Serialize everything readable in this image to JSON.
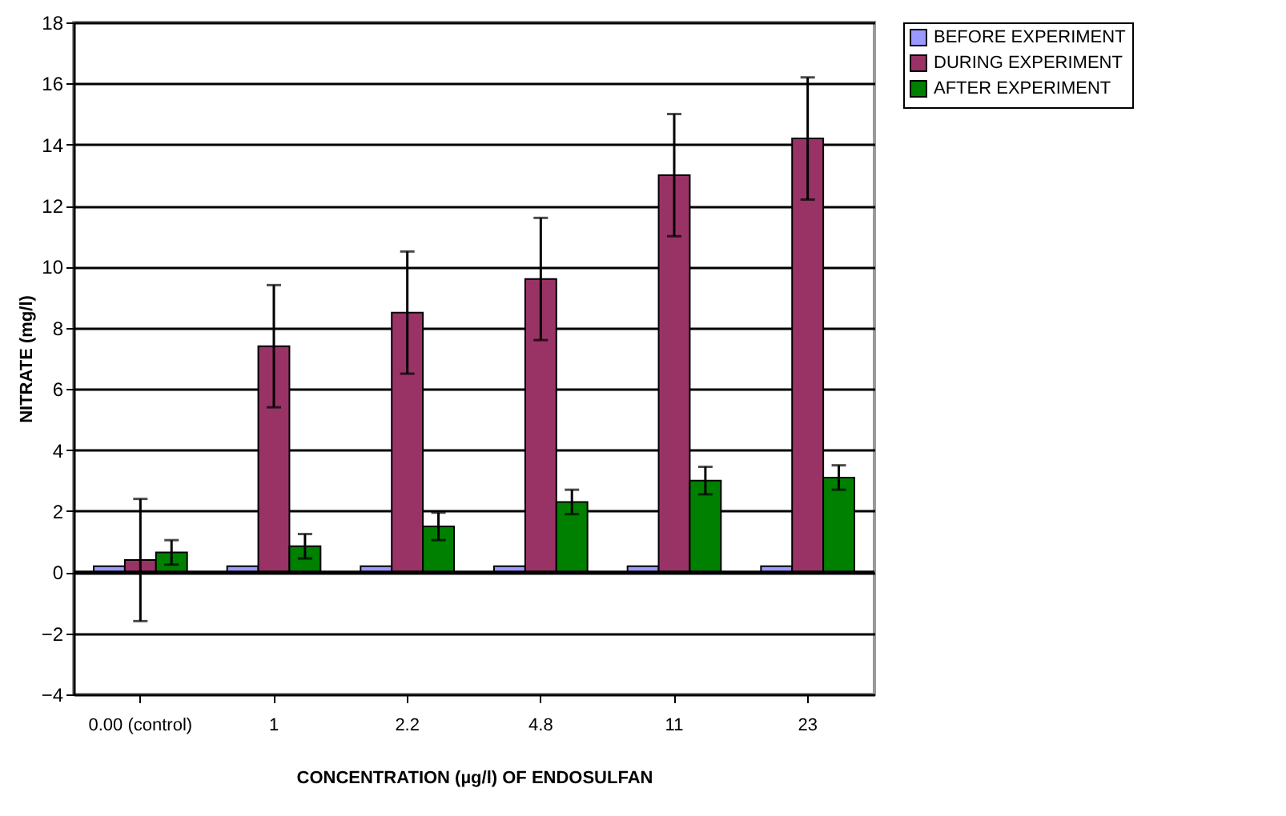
{
  "chart_data": {
    "type": "bar",
    "xlabel": "CONCENTRATION (µg/l) OF ENDOSULFAN",
    "ylabel": "NITRATE (mg/l)",
    "categories": [
      "0.00 (control)",
      "1",
      "2.2",
      "4.8",
      "11",
      "23"
    ],
    "series": [
      {
        "name": "BEFORE EXPERIMENT",
        "color": "#9999ff",
        "values": [
          0.2,
          0.2,
          0.2,
          0.2,
          0.2,
          0.2
        ]
      },
      {
        "name": "DURING EXPERIMENT",
        "color": "#993366",
        "values": [
          0.4,
          7.4,
          8.5,
          9.6,
          13.0,
          14.2
        ],
        "errors": [
          2.0,
          2.0,
          2.0,
          2.0,
          2.0,
          2.0
        ]
      },
      {
        "name": "AFTER EXPERIMENT",
        "color": "#008000",
        "values": [
          0.65,
          0.85,
          1.5,
          2.3,
          3.0,
          3.1
        ],
        "errors": [
          0.4,
          0.4,
          0.45,
          0.4,
          0.45,
          0.4
        ]
      }
    ],
    "ylim": [
      -4,
      18
    ],
    "yticks": [
      -4,
      -2,
      0,
      2,
      4,
      6,
      8,
      10,
      12,
      14,
      16,
      18
    ],
    "grid": "y",
    "legend": "right"
  }
}
